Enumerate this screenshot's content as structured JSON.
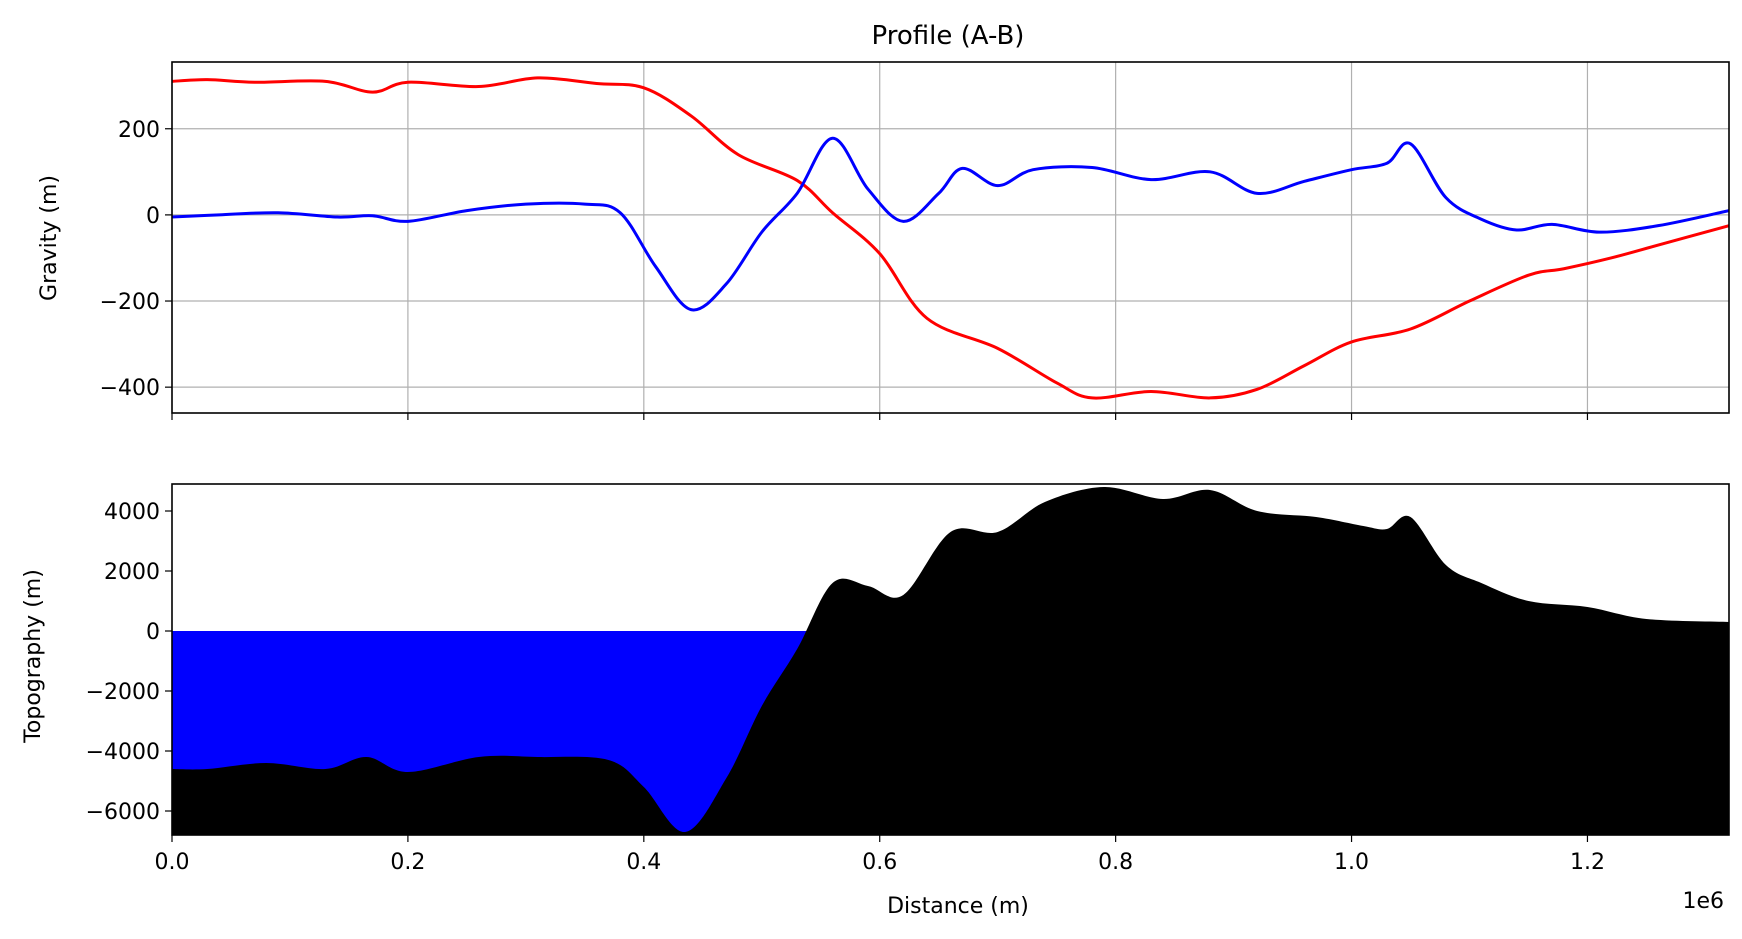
{
  "chart_data": [
    {
      "type": "line",
      "title": "Profile (A-B)",
      "ylabel": "Gravity (m)",
      "xlim": [
        0,
        1320000
      ],
      "ylim": [
        -460,
        355
      ],
      "grid": true,
      "yticks": [
        200,
        0,
        -200,
        -400
      ],
      "ytick_labels": [
        "200",
        "0",
        "−200",
        "−400"
      ],
      "series": [
        {
          "color": "#ff0000",
          "x": [
            0,
            30000,
            70000,
            130000,
            170000,
            200000,
            260000,
            310000,
            360000,
            400000,
            440000,
            480000,
            530000,
            560000,
            600000,
            640000,
            700000,
            750000,
            780000,
            830000,
            880000,
            920000,
            960000,
            1000000,
            1050000,
            1100000,
            1150000,
            1180000,
            1220000,
            1260000,
            1320000
          ],
          "y": [
            310,
            314,
            308,
            310,
            285,
            308,
            298,
            318,
            305,
            295,
            230,
            140,
            80,
            5,
            -90,
            -240,
            -310,
            -390,
            -425,
            -410,
            -425,
            -405,
            -350,
            -295,
            -265,
            -200,
            -140,
            -125,
            -100,
            -70,
            -25
          ]
        },
        {
          "color": "#0000ff",
          "x": [
            0,
            40000,
            90000,
            140000,
            170000,
            200000,
            250000,
            300000,
            350000,
            380000,
            410000,
            440000,
            470000,
            500000,
            530000,
            560000,
            590000,
            620000,
            650000,
            670000,
            700000,
            730000,
            780000,
            830000,
            880000,
            920000,
            960000,
            1000000,
            1030000,
            1050000,
            1080000,
            1110000,
            1140000,
            1170000,
            1210000,
            1260000,
            1320000
          ],
          "y": [
            -5,
            0,
            5,
            -5,
            -2,
            -15,
            10,
            25,
            25,
            5,
            -120,
            -220,
            -160,
            -40,
            50,
            178,
            60,
            -15,
            50,
            108,
            68,
            105,
            110,
            82,
            100,
            50,
            78,
            105,
            120,
            165,
            40,
            -10,
            -35,
            -22,
            -40,
            -25,
            10
          ]
        }
      ]
    },
    {
      "type": "area",
      "ylabel": "Topography (m)",
      "xlabel": "Distance (m)",
      "xlim": [
        0,
        1320000
      ],
      "ylim": [
        -6800,
        4900
      ],
      "grid": false,
      "xticks": [
        0.0,
        0.2,
        0.4,
        0.6,
        0.8,
        1.0,
        1.2
      ],
      "xtick_labels": [
        "0.0",
        "0.2",
        "0.4",
        "0.6",
        "0.8",
        "1.0",
        "1.2"
      ],
      "x_offset_label": "1e6",
      "yticks": [
        4000,
        2000,
        0,
        -2000,
        -4000,
        -6000
      ],
      "ytick_labels": [
        "4000",
        "2000",
        "0",
        "−2000",
        "−4000",
        "−6000"
      ],
      "series": [
        {
          "color": "#000000",
          "x": [
            0,
            30000,
            80000,
            130000,
            165000,
            200000,
            260000,
            310000,
            370000,
            400000,
            435000,
            470000,
            500000,
            530000,
            560000,
            590000,
            620000,
            660000,
            700000,
            740000,
            790000,
            840000,
            880000,
            920000,
            970000,
            1010000,
            1030000,
            1050000,
            1080000,
            1110000,
            1150000,
            1200000,
            1250000,
            1320000
          ],
          "y": [
            -4600,
            -4600,
            -4400,
            -4600,
            -4200,
            -4700,
            -4200,
            -4200,
            -4300,
            -5200,
            -6700,
            -4900,
            -2500,
            -600,
            1600,
            1500,
            1200,
            3300,
            3300,
            4300,
            4800,
            4400,
            4700,
            4000,
            3800,
            3500,
            3400,
            3800,
            2200,
            1600,
            1000,
            800,
            400,
            300
          ]
        },
        {
          "color": "#0000ff",
          "level": 0
        }
      ]
    }
  ]
}
